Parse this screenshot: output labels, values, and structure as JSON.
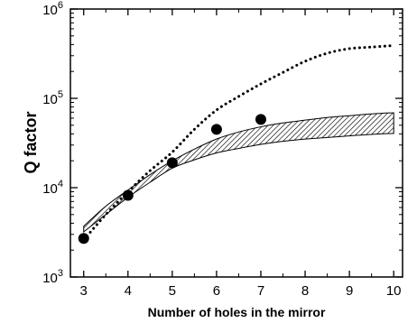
{
  "chart_data": {
    "type": "line",
    "title": "",
    "xlabel": "Number of holes in the mirror",
    "ylabel": "Q factor",
    "xlim": [
      2.7,
      10.2
    ],
    "ylim": [
      1000,
      1000000
    ],
    "y_scale": "log",
    "grid": false,
    "legend": "none",
    "x_ticks": [
      3,
      4,
      5,
      6,
      7,
      8,
      9,
      10
    ],
    "x_tick_labels": [
      "3",
      "4",
      "5",
      "6",
      "7",
      "8",
      "9",
      "10"
    ],
    "y_ticks": [
      1000,
      10000,
      100000,
      1000000
    ],
    "y_tick_labels": [
      {
        "base": "10",
        "exp": "3"
      },
      {
        "base": "10",
        "exp": "4"
      },
      {
        "base": "10",
        "exp": "5"
      },
      {
        "base": "10",
        "exp": "6"
      }
    ],
    "series": [
      {
        "style": "dotted-line",
        "x": [
          3,
          3.5,
          4,
          4.5,
          5,
          5.5,
          6,
          6.5,
          7,
          7.5,
          8,
          8.5,
          9,
          9.5,
          10
        ],
        "values": [
          2600,
          5000,
          9000,
          15500,
          25000,
          45000,
          74000,
          105000,
          145000,
          195000,
          260000,
          320000,
          360000,
          375000,
          390000
        ]
      },
      {
        "style": "markers",
        "x": [
          3,
          4,
          5,
          6,
          7
        ],
        "values": [
          2700,
          8200,
          19000,
          45000,
          58000
        ]
      },
      {
        "style": "hatched-band",
        "x": [
          3,
          3.5,
          4,
          4.5,
          5,
          5.5,
          6,
          6.5,
          7,
          7.5,
          8,
          8.5,
          9,
          9.5,
          10
        ],
        "upper": [
          3700,
          6200,
          9400,
          14000,
          20000,
          27000,
          35000,
          42000,
          48000,
          53000,
          57000,
          61000,
          64000,
          67000,
          69000
        ],
        "lower": [
          3200,
          5000,
          7800,
          11500,
          16500,
          20500,
          24500,
          27500,
          30500,
          33000,
          35000,
          36500,
          38000,
          39500,
          40500
        ]
      }
    ]
  }
}
